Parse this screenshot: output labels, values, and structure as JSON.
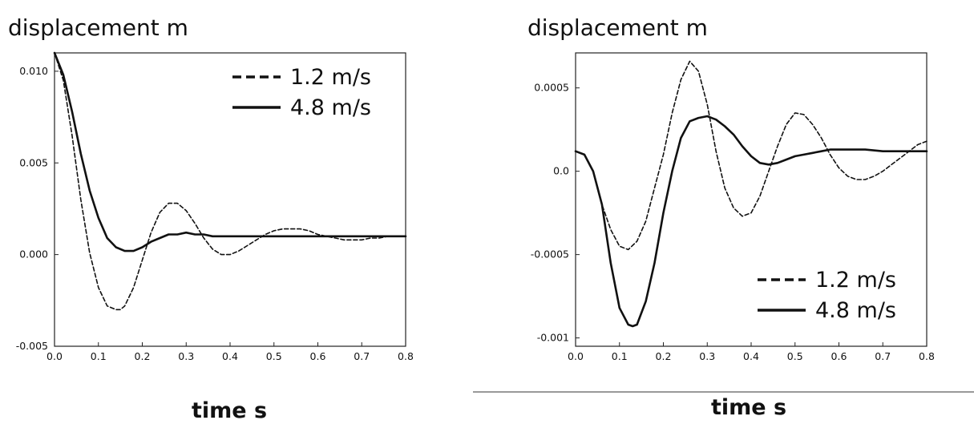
{
  "chart_data": [
    {
      "type": "line",
      "ylabel": "displacement m",
      "xlabel": "time s",
      "xlim": [
        0.0,
        0.8
      ],
      "ylim": [
        -0.005,
        0.011
      ],
      "x_ticks": [
        "0.0",
        "0.1",
        "0.2",
        "0.3",
        "0.4",
        "0.5",
        "0.6",
        "0.7",
        "0.8"
      ],
      "y_ticks": [
        {
          "label": "-0.005",
          "value": -0.005
        },
        {
          "label": "0.000",
          "value": 0.0
        },
        {
          "label": "0.005",
          "value": 0.005
        },
        {
          "label": "0.010",
          "value": 0.01
        }
      ],
      "legend_position": "top-right",
      "grid": false,
      "series": [
        {
          "name": "1.2 m/s",
          "style": "dashed",
          "x": [
            0.0,
            0.02,
            0.04,
            0.06,
            0.08,
            0.1,
            0.12,
            0.14,
            0.15,
            0.16,
            0.18,
            0.2,
            0.22,
            0.24,
            0.26,
            0.28,
            0.3,
            0.32,
            0.34,
            0.36,
            0.38,
            0.4,
            0.42,
            0.44,
            0.46,
            0.48,
            0.5,
            0.52,
            0.54,
            0.56,
            0.58,
            0.6,
            0.62,
            0.64,
            0.66,
            0.68,
            0.7,
            0.72,
            0.74,
            0.76,
            0.78,
            0.8
          ],
          "values": [
            0.011,
            0.0095,
            0.0065,
            0.003,
            0.0001,
            -0.0018,
            -0.0028,
            -0.003,
            -0.003,
            -0.0028,
            -0.0018,
            -0.0003,
            0.0012,
            0.0023,
            0.0028,
            0.0028,
            0.0024,
            0.0017,
            0.0009,
            0.0003,
            0.0,
            0.0,
            0.0002,
            0.0005,
            0.0008,
            0.0011,
            0.0013,
            0.0014,
            0.0014,
            0.0014,
            0.0013,
            0.0011,
            0.001,
            0.0009,
            0.0008,
            0.0008,
            0.0008,
            0.0009,
            0.0009,
            0.001,
            0.001,
            0.001
          ]
        },
        {
          "name": "4.8 m/s",
          "style": "solid",
          "x": [
            0.0,
            0.02,
            0.04,
            0.06,
            0.08,
            0.1,
            0.12,
            0.14,
            0.16,
            0.18,
            0.2,
            0.22,
            0.24,
            0.26,
            0.28,
            0.3,
            0.32,
            0.34,
            0.36,
            0.38,
            0.4,
            0.45,
            0.5,
            0.55,
            0.6,
            0.65,
            0.7,
            0.75,
            0.8
          ],
          "values": [
            0.011,
            0.0098,
            0.0078,
            0.0055,
            0.0035,
            0.002,
            0.0009,
            0.0004,
            0.0002,
            0.0002,
            0.0004,
            0.0007,
            0.0009,
            0.0011,
            0.0011,
            0.0012,
            0.0011,
            0.0011,
            0.001,
            0.001,
            0.001,
            0.001,
            0.001,
            0.001,
            0.001,
            0.001,
            0.001,
            0.001,
            0.001
          ]
        }
      ]
    },
    {
      "type": "line",
      "ylabel": "displacement m",
      "xlabel": "time s",
      "xlim": [
        0.0,
        0.8
      ],
      "ylim": [
        -0.00105,
        0.00071
      ],
      "x_ticks": [
        "0.0",
        "0.1",
        "0.2",
        "0.3",
        "0.4",
        "0.5",
        "0.6",
        "0.7",
        "0.8"
      ],
      "y_ticks": [
        {
          "label": "-0.001",
          "value": -0.001
        },
        {
          "label": "-0.0005",
          "value": -0.0005
        },
        {
          "label": "0.0",
          "value": 0.0
        },
        {
          "label": "0.0005",
          "value": 0.0005
        }
      ],
      "legend_position": "bottom-right",
      "grid": false,
      "series": [
        {
          "name": "1.2 m/s",
          "style": "dashed",
          "x": [
            0.0,
            0.02,
            0.04,
            0.06,
            0.08,
            0.1,
            0.12,
            0.14,
            0.16,
            0.18,
            0.2,
            0.22,
            0.24,
            0.26,
            0.28,
            0.3,
            0.32,
            0.34,
            0.36,
            0.38,
            0.4,
            0.42,
            0.44,
            0.46,
            0.48,
            0.5,
            0.52,
            0.54,
            0.56,
            0.58,
            0.6,
            0.62,
            0.64,
            0.66,
            0.68,
            0.7,
            0.72,
            0.74,
            0.76,
            0.78,
            0.8
          ],
          "values": [
            0.00012,
            0.0001,
            0.0,
            -0.0002,
            -0.00035,
            -0.00045,
            -0.00047,
            -0.00042,
            -0.0003,
            -0.0001,
            0.0001,
            0.00035,
            0.00055,
            0.00066,
            0.0006,
            0.0004,
            0.00012,
            -0.0001,
            -0.00022,
            -0.00027,
            -0.00025,
            -0.00015,
            0.0,
            0.00015,
            0.00028,
            0.00035,
            0.00034,
            0.00028,
            0.0002,
            0.0001,
            2e-05,
            -3e-05,
            -5e-05,
            -5e-05,
            -3e-05,
            0.0,
            4e-05,
            8e-05,
            0.00012,
            0.00016,
            0.00018
          ]
        },
        {
          "name": "4.8 m/s",
          "style": "solid",
          "x": [
            0.0,
            0.02,
            0.04,
            0.06,
            0.08,
            0.1,
            0.12,
            0.13,
            0.14,
            0.16,
            0.18,
            0.2,
            0.22,
            0.24,
            0.26,
            0.28,
            0.3,
            0.32,
            0.34,
            0.36,
            0.38,
            0.4,
            0.42,
            0.44,
            0.46,
            0.48,
            0.5,
            0.52,
            0.54,
            0.56,
            0.58,
            0.6,
            0.62,
            0.64,
            0.66,
            0.7,
            0.75,
            0.8
          ],
          "values": [
            0.00012,
            0.0001,
            0.0,
            -0.0002,
            -0.00055,
            -0.00082,
            -0.00092,
            -0.00093,
            -0.00092,
            -0.00078,
            -0.00055,
            -0.00025,
            0.0,
            0.0002,
            0.0003,
            0.00032,
            0.00033,
            0.00031,
            0.00027,
            0.00022,
            0.00015,
            9e-05,
            5e-05,
            4e-05,
            5e-05,
            7e-05,
            9e-05,
            0.0001,
            0.00011,
            0.00012,
            0.00013,
            0.00013,
            0.00013,
            0.00013,
            0.00013,
            0.00012,
            0.00012,
            0.00012
          ]
        }
      ]
    }
  ]
}
